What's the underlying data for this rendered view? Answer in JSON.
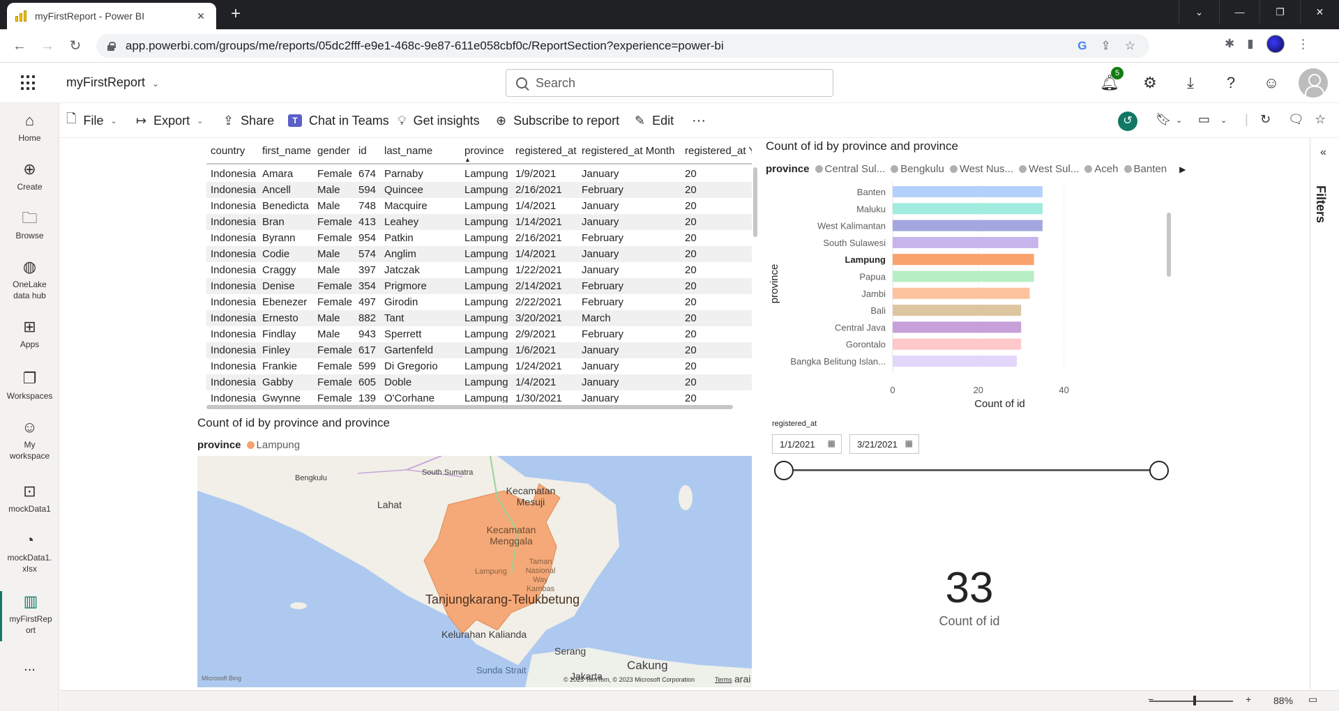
{
  "browser": {
    "tab_title": "myFirstReport - Power BI",
    "url": "app.powerbi.com/groups/me/reports/05dc2fff-e9e1-468c-9e87-611e058cbf0c/ReportSection?experience=power-bi"
  },
  "header": {
    "report_name": "myFirstReport",
    "search_placeholder": "Search",
    "notification_count": "5"
  },
  "leftnav": [
    {
      "label": "Home",
      "icon": "home-icon"
    },
    {
      "label": "Create",
      "icon": "plus-circle-icon"
    },
    {
      "label": "Browse",
      "icon": "folder-icon"
    },
    {
      "label": "OneLake data hub",
      "icon": "onelake-icon"
    },
    {
      "label": "Apps",
      "icon": "apps-icon"
    },
    {
      "label": "Workspaces",
      "icon": "workspaces-icon"
    },
    {
      "label": "My workspace",
      "icon": "my-workspace-icon"
    },
    {
      "label": "mockData1",
      "icon": "dataset-icon"
    },
    {
      "label": "mockData1. xlsx",
      "icon": "dashboard-gauge-icon"
    },
    {
      "label": "myFirstRep ort",
      "icon": "report-icon"
    },
    {
      "label": "...",
      "icon": "more-icon"
    }
  ],
  "ribbon": {
    "file": "File",
    "export": "Export",
    "share": "Share",
    "chat": "Chat in Teams",
    "insights": "Get insights",
    "subscribe": "Subscribe to report",
    "edit": "Edit",
    "more": "···"
  },
  "filters_label": "Filters",
  "table": {
    "columns": [
      "country",
      "first_name",
      "gender",
      "id",
      "last_name",
      "province",
      "registered_at",
      "registered_at Month",
      "registered_at Y"
    ],
    "rows": [
      [
        "Indonesia",
        "Amara",
        "Female",
        "674",
        "Parnaby",
        "Lampung",
        "1/9/2021",
        "January",
        "20"
      ],
      [
        "Indonesia",
        "Ancell",
        "Male",
        "594",
        "Quincee",
        "Lampung",
        "2/16/2021",
        "February",
        "20"
      ],
      [
        "Indonesia",
        "Benedicta",
        "Male",
        "748",
        "Macquire",
        "Lampung",
        "1/4/2021",
        "January",
        "20"
      ],
      [
        "Indonesia",
        "Bran",
        "Female",
        "413",
        "Leahey",
        "Lampung",
        "1/14/2021",
        "January",
        "20"
      ],
      [
        "Indonesia",
        "Byrann",
        "Female",
        "954",
        "Patkin",
        "Lampung",
        "2/16/2021",
        "February",
        "20"
      ],
      [
        "Indonesia",
        "Codie",
        "Male",
        "574",
        "Anglim",
        "Lampung",
        "1/4/2021",
        "January",
        "20"
      ],
      [
        "Indonesia",
        "Craggy",
        "Male",
        "397",
        "Jatczak",
        "Lampung",
        "1/22/2021",
        "January",
        "20"
      ],
      [
        "Indonesia",
        "Denise",
        "Female",
        "354",
        "Prigmore",
        "Lampung",
        "2/14/2021",
        "February",
        "20"
      ],
      [
        "Indonesia",
        "Ebenezer",
        "Female",
        "497",
        "Girodin",
        "Lampung",
        "2/22/2021",
        "February",
        "20"
      ],
      [
        "Indonesia",
        "Ernesto",
        "Male",
        "882",
        "Tant",
        "Lampung",
        "3/20/2021",
        "March",
        "20"
      ],
      [
        "Indonesia",
        "Findlay",
        "Male",
        "943",
        "Sperrett",
        "Lampung",
        "2/9/2021",
        "February",
        "20"
      ],
      [
        "Indonesia",
        "Finley",
        "Female",
        "617",
        "Gartenfeld",
        "Lampung",
        "1/6/2021",
        "January",
        "20"
      ],
      [
        "Indonesia",
        "Frankie",
        "Female",
        "599",
        "Di Gregorio",
        "Lampung",
        "1/24/2021",
        "January",
        "20"
      ],
      [
        "Indonesia",
        "Gabby",
        "Female",
        "605",
        "Doble",
        "Lampung",
        "1/4/2021",
        "January",
        "20"
      ],
      [
        "Indonesia",
        "Gwynne",
        "Female",
        "139",
        "O'Corhane",
        "Lampung",
        "1/30/2021",
        "January",
        "20"
      ]
    ]
  },
  "map_visual": {
    "title": "Count of id by province and province",
    "legend_title": "province",
    "legend_item": "Lampung",
    "legend_color": "#f9a26c",
    "labels": {
      "bengkulu": "Bengkulu",
      "south_sumatra": "South Sumatra",
      "lahat": "Lahat",
      "kec_mesuji": "Kecamatan Mesuji",
      "kec_menggala": "Kecamatan Menggala",
      "lampung": "Lampung",
      "taman": "Taman Nasional Way Kambas",
      "tanjung": "Tanjungkarang-Telukbetung",
      "kalianda": "Kelurahan Kalianda",
      "serang": "Serang",
      "cakung": "Cakung",
      "sunda": "Sunda Strait",
      "jakarta": "Jakarta",
      "right_edge": "arai",
      "bing": "Microsoft Bing",
      "copyright": "© 2023 TomTom, © 2023 Microsoft Corporation",
      "terms": "Terms"
    }
  },
  "bar_visual": {
    "title": "Count of id by province and province",
    "legend_title": "province",
    "legend_items": [
      {
        "name": "Central Sul...",
        "color": "#b0b0b0"
      },
      {
        "name": "Bengkulu",
        "color": "#b0b0b0"
      },
      {
        "name": "West Nus...",
        "color": "#b0b0b0"
      },
      {
        "name": "West Sul...",
        "color": "#b0b0b0"
      },
      {
        "name": "Aceh",
        "color": "#b0b0b0"
      },
      {
        "name": "Banten",
        "color": "#b0b0b0"
      }
    ]
  },
  "chart_data": {
    "type": "bar",
    "orientation": "horizontal",
    "title": "Count of id by province and province",
    "xlabel": "Count of id",
    "ylabel": "province",
    "categories": [
      "Banten",
      "Maluku",
      "West Kalimantan",
      "South Sulawesi",
      "Lampung",
      "Papua",
      "Jambi",
      "Bali",
      "Central Java",
      "Gorontalo",
      "Bangka Belitung Islan..."
    ],
    "values": [
      35,
      35,
      35,
      34,
      33,
      33,
      32,
      30,
      30,
      30,
      29
    ],
    "colors": [
      "#b3d1fa",
      "#a0ecdf",
      "#a3a6df",
      "#c7b4ea",
      "#f9a26c",
      "#b8eec4",
      "#fcc39e",
      "#dcc6a0",
      "#c79fd9",
      "#ffc8cb",
      "#e2d7fb"
    ],
    "highlighted": "Lampung",
    "xlim": [
      0,
      50
    ],
    "xticks": [
      0,
      20,
      40
    ],
    "grid": true
  },
  "slicer": {
    "title": "registered_at",
    "start": "1/1/2021",
    "end": "3/21/2021"
  },
  "card": {
    "value": "33",
    "label": "Count of id"
  },
  "status": {
    "zoom": "88%"
  }
}
